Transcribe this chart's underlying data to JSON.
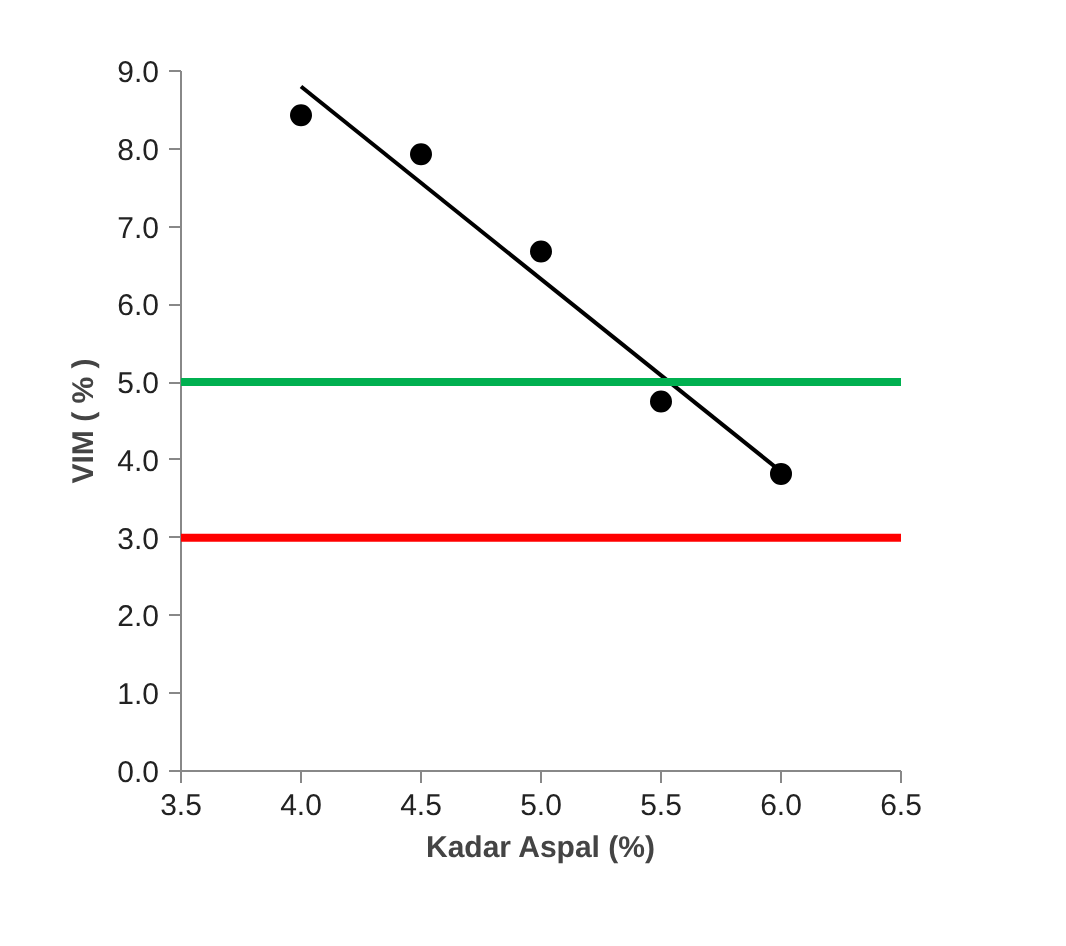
{
  "chart_data": {
    "type": "scatter",
    "xlabel": "Kadar Aspal (%)",
    "ylabel": "VIM ( % )",
    "xlim": [
      3.5,
      6.5
    ],
    "xticks": [
      {
        "value": 3.5,
        "label": "3.5"
      },
      {
        "value": 4.0,
        "label": "4.0"
      },
      {
        "value": 4.5,
        "label": "4.5"
      },
      {
        "value": 5.0,
        "label": "5.0"
      },
      {
        "value": 5.5,
        "label": "5.5"
      },
      {
        "value": 6.0,
        "label": "6.0"
      },
      {
        "value": 6.5,
        "label": "6.5"
      }
    ],
    "ylim": [
      0,
      9
    ],
    "yticks": [
      {
        "value": 0,
        "label": "0.0"
      },
      {
        "value": 1,
        "label": "1.0"
      },
      {
        "value": 2,
        "label": "2.0"
      },
      {
        "value": 3,
        "label": "3.0"
      },
      {
        "value": 4,
        "label": "4.0"
      },
      {
        "value": 5,
        "label": "5.0"
      },
      {
        "value": 6,
        "label": "6.0"
      },
      {
        "value": 7,
        "label": "7.0"
      },
      {
        "value": 8,
        "label": "8.0"
      },
      {
        "value": 9,
        "label": "9.0"
      }
    ],
    "grid": false,
    "series": [
      {
        "marker": "circle",
        "color": "#000000",
        "x": [
          4.0,
          4.5,
          5.0,
          5.5,
          6.0
        ],
        "values": [
          8.43,
          7.93,
          6.68,
          4.75,
          3.82
        ]
      },
      {
        "type": "line",
        "marker": "none",
        "color": "#000000",
        "x": [
          4.0,
          6.0
        ],
        "values": [
          8.8,
          3.85
        ]
      }
    ],
    "ref_lines": [
      {
        "axis": "y",
        "value": 5,
        "color": "#00b050"
      },
      {
        "axis": "y",
        "value": 3,
        "color": "#ff0000"
      }
    ]
  }
}
